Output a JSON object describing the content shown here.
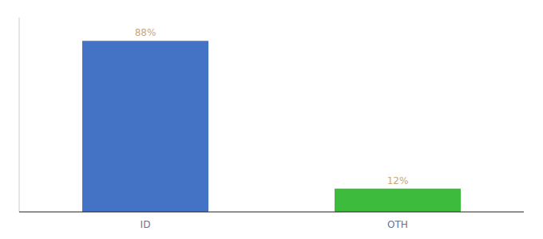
{
  "chart_data": {
    "type": "bar",
    "categories": [
      "ID",
      "OTH"
    ],
    "values": [
      88,
      12
    ],
    "value_labels": [
      "88%",
      "12%"
    ],
    "colors": [
      "#4472c4",
      "#3dbb3d"
    ],
    "ylim": [
      0,
      100
    ],
    "yticks": [],
    "tick_labels": "x",
    "data_labels": true,
    "grid": false
  }
}
